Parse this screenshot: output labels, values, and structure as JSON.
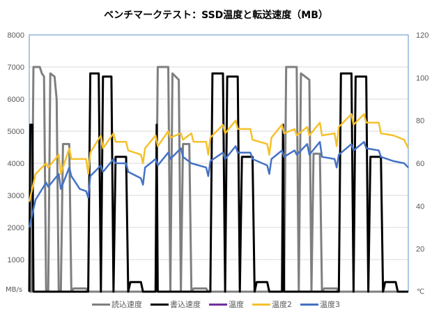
{
  "chart_data": {
    "type": "line",
    "title": "ベンチマークテスト：SSD温度と転送速度（MB）",
    "y_left": {
      "label": "MB/s",
      "ticks": [
        "1000",
        "2000",
        "3000",
        "4000",
        "5000",
        "6000",
        "7000",
        "8000"
      ],
      "range": [
        0,
        8000
      ]
    },
    "y_right": {
      "label": "℃",
      "ticks": [
        "20",
        "40",
        "60",
        "80",
        "100",
        "120"
      ],
      "range": [
        0,
        120
      ]
    },
    "grid": true,
    "legend_position": "bottom",
    "x": [
      0,
      1,
      2,
      3,
      4,
      5,
      6,
      7,
      8,
      9,
      10,
      11,
      12,
      13,
      14,
      15,
      16,
      17,
      18,
      19,
      20,
      21,
      22,
      23,
      24,
      25,
      26,
      27,
      28,
      29,
      30,
      31,
      32,
      33,
      34,
      35,
      36,
      37,
      38,
      39,
      40,
      41,
      42,
      43,
      44,
      45,
      46,
      47,
      48,
      49,
      50,
      51,
      52,
      53,
      54,
      55,
      56,
      57,
      58,
      59,
      60,
      61,
      62,
      63,
      64,
      65,
      66,
      67,
      68,
      69,
      70,
      71,
      72,
      73,
      74,
      75,
      76,
      77,
      78,
      79,
      80,
      81,
      82,
      83,
      84,
      85,
      86,
      87,
      88,
      89,
      90,
      91,
      92,
      93,
      94,
      95,
      96,
      97,
      98,
      99,
      100,
      101,
      102,
      103,
      104,
      105,
      106,
      107,
      108,
      109,
      110,
      111,
      112,
      113,
      114,
      115,
      116,
      117,
      118,
      119,
      120,
      121,
      122,
      123,
      124,
      125,
      126,
      127,
      128,
      129,
      130,
      131,
      132,
      133,
      134,
      135,
      136,
      137,
      138,
      139,
      140,
      141,
      142,
      143,
      144,
      145,
      146,
      147,
      148,
      149,
      150,
      151,
      152,
      153,
      154,
      155,
      156,
      157,
      158,
      159,
      160,
      161,
      162,
      163,
      164,
      165,
      166,
      167,
      168,
      169,
      170,
      171,
      172,
      173,
      174,
      175,
      176,
      177,
      178,
      179,
      180
    ],
    "series": [
      {
        "name": "読込速度",
        "color": "#7f7f7f",
        "axis": "left",
        "points": [
          [
            0,
            0
          ],
          [
            1,
            0
          ],
          [
            2,
            7000
          ],
          [
            5,
            7000
          ],
          [
            6,
            6800
          ],
          [
            7,
            6700
          ],
          [
            8,
            0
          ],
          [
            9,
            0
          ],
          [
            10,
            6800
          ],
          [
            12,
            6700
          ],
          [
            13,
            6000
          ],
          [
            14,
            0
          ],
          [
            15,
            0
          ],
          [
            16,
            4600
          ],
          [
            19,
            4600
          ],
          [
            20,
            0
          ],
          [
            21,
            100
          ],
          [
            27,
            100
          ],
          [
            28,
            0
          ],
          [
            60,
            0
          ],
          [
            61,
            7000
          ],
          [
            66,
            7000
          ],
          [
            67,
            0
          ],
          [
            68,
            6800
          ],
          [
            71,
            6600
          ],
          [
            72,
            0
          ],
          [
            73,
            4600
          ],
          [
            76,
            4600
          ],
          [
            77,
            0
          ],
          [
            78,
            100
          ],
          [
            84,
            100
          ],
          [
            85,
            0
          ],
          [
            121,
            0
          ],
          [
            122,
            7000
          ],
          [
            127,
            7000
          ],
          [
            128,
            0
          ],
          [
            129,
            6800
          ],
          [
            133,
            6600
          ],
          [
            134,
            0
          ],
          [
            135,
            4300
          ],
          [
            138,
            4300
          ],
          [
            139,
            0
          ],
          [
            140,
            100
          ],
          [
            146,
            100
          ],
          [
            147,
            0
          ],
          [
            180,
            0
          ]
        ]
      },
      {
        "name": "書込速度",
        "color": "#000000",
        "axis": "left",
        "points": [
          [
            0,
            0
          ],
          [
            0.5,
            5200
          ],
          [
            1.5,
            5200
          ],
          [
            2,
            0
          ],
          [
            28,
            0
          ],
          [
            29,
            6800
          ],
          [
            33,
            6800
          ],
          [
            34,
            0
          ],
          [
            35,
            6700
          ],
          [
            39,
            6700
          ],
          [
            40,
            0
          ],
          [
            41,
            4200
          ],
          [
            46,
            4200
          ],
          [
            47,
            0
          ],
          [
            48,
            300
          ],
          [
            53,
            300
          ],
          [
            54,
            0
          ],
          [
            60,
            0
          ],
          [
            60.5,
            5200
          ],
          [
            61,
            0
          ],
          [
            86,
            0
          ],
          [
            87,
            6800
          ],
          [
            92,
            6800
          ],
          [
            93,
            0
          ],
          [
            94,
            6700
          ],
          [
            99,
            6700
          ],
          [
            100,
            0
          ],
          [
            101,
            4200
          ],
          [
            106,
            4200
          ],
          [
            107,
            0
          ],
          [
            108,
            300
          ],
          [
            113,
            300
          ],
          [
            114,
            0
          ],
          [
            120,
            0
          ],
          [
            120.5,
            5200
          ],
          [
            121,
            0
          ],
          [
            147,
            0
          ],
          [
            148,
            6800
          ],
          [
            153,
            6800
          ],
          [
            154,
            0
          ],
          [
            155,
            6700
          ],
          [
            160,
            6700
          ],
          [
            161,
            0
          ],
          [
            162,
            4200
          ],
          [
            167,
            4200
          ],
          [
            168,
            0
          ],
          [
            169,
            300
          ],
          [
            174,
            300
          ],
          [
            175,
            0
          ],
          [
            180,
            0
          ]
        ]
      },
      {
        "name": "温度",
        "color": "#7030a0",
        "axis": "right",
        "points": []
      },
      {
        "name": "温度2",
        "color": "#f5c12b",
        "axis": "right",
        "points": [
          [
            0,
            42
          ],
          [
            3,
            55
          ],
          [
            8,
            60
          ],
          [
            9,
            58
          ],
          [
            14,
            64
          ],
          [
            15,
            55
          ],
          [
            19,
            67
          ],
          [
            20,
            62
          ],
          [
            27,
            62
          ],
          [
            28,
            55
          ],
          [
            29,
            65
          ],
          [
            34,
            73
          ],
          [
            35,
            67
          ],
          [
            40,
            74
          ],
          [
            41,
            70
          ],
          [
            46,
            70
          ],
          [
            47,
            66
          ],
          [
            53,
            64
          ],
          [
            54,
            60
          ],
          [
            55,
            67
          ],
          [
            60,
            73
          ],
          [
            61,
            68
          ],
          [
            66,
            75
          ],
          [
            67,
            72
          ],
          [
            72,
            74
          ],
          [
            73,
            71
          ],
          [
            77,
            74
          ],
          [
            78,
            70
          ],
          [
            84,
            70
          ],
          [
            85,
            64
          ],
          [
            86,
            72
          ],
          [
            92,
            78
          ],
          [
            93,
            74
          ],
          [
            98,
            80
          ],
          [
            99,
            76
          ],
          [
            105,
            76
          ],
          [
            106,
            71
          ],
          [
            113,
            69
          ],
          [
            114,
            64
          ],
          [
            115,
            72
          ],
          [
            120,
            78
          ],
          [
            121,
            74
          ],
          [
            126,
            76
          ],
          [
            127,
            73
          ],
          [
            132,
            77
          ],
          [
            133,
            73
          ],
          [
            138,
            79
          ],
          [
            139,
            73
          ],
          [
            145,
            74
          ],
          [
            146,
            68
          ],
          [
            147,
            77
          ],
          [
            153,
            83
          ],
          [
            154,
            78
          ],
          [
            159,
            83
          ],
          [
            160,
            79
          ],
          [
            166,
            79
          ],
          [
            167,
            74
          ],
          [
            173,
            73
          ],
          [
            178,
            71
          ],
          [
            180,
            67
          ]
        ]
      },
      {
        "name": "温度3",
        "color": "#4472c4",
        "axis": "right",
        "points": [
          [
            0,
            30
          ],
          [
            3,
            43
          ],
          [
            8,
            51
          ],
          [
            9,
            49
          ],
          [
            14,
            55
          ],
          [
            15,
            48
          ],
          [
            19,
            58
          ],
          [
            20,
            54
          ],
          [
            24,
            48
          ],
          [
            27,
            47
          ],
          [
            28,
            44
          ],
          [
            29,
            54
          ],
          [
            34,
            59
          ],
          [
            35,
            56
          ],
          [
            40,
            62
          ],
          [
            41,
            60
          ],
          [
            46,
            60
          ],
          [
            47,
            56
          ],
          [
            53,
            53
          ],
          [
            54,
            50
          ],
          [
            55,
            58
          ],
          [
            60,
            62
          ],
          [
            61,
            59
          ],
          [
            66,
            65
          ],
          [
            67,
            62
          ],
          [
            72,
            67
          ],
          [
            73,
            63
          ],
          [
            77,
            60
          ],
          [
            84,
            58
          ],
          [
            85,
            54
          ],
          [
            86,
            61
          ],
          [
            92,
            65
          ],
          [
            93,
            62
          ],
          [
            98,
            68
          ],
          [
            99,
            65
          ],
          [
            105,
            65
          ],
          [
            106,
            62
          ],
          [
            113,
            59
          ],
          [
            114,
            55
          ],
          [
            115,
            62
          ],
          [
            120,
            66
          ],
          [
            121,
            63
          ],
          [
            126,
            66
          ],
          [
            127,
            64
          ],
          [
            132,
            69
          ],
          [
            133,
            64
          ],
          [
            138,
            70
          ],
          [
            139,
            63
          ],
          [
            145,
            62
          ],
          [
            146,
            58
          ],
          [
            147,
            64
          ],
          [
            153,
            69
          ],
          [
            154,
            66
          ],
          [
            159,
            70
          ],
          [
            160,
            67
          ],
          [
            166,
            66
          ],
          [
            167,
            63
          ],
          [
            173,
            61
          ],
          [
            178,
            60
          ],
          [
            180,
            58
          ]
        ]
      }
    ]
  }
}
